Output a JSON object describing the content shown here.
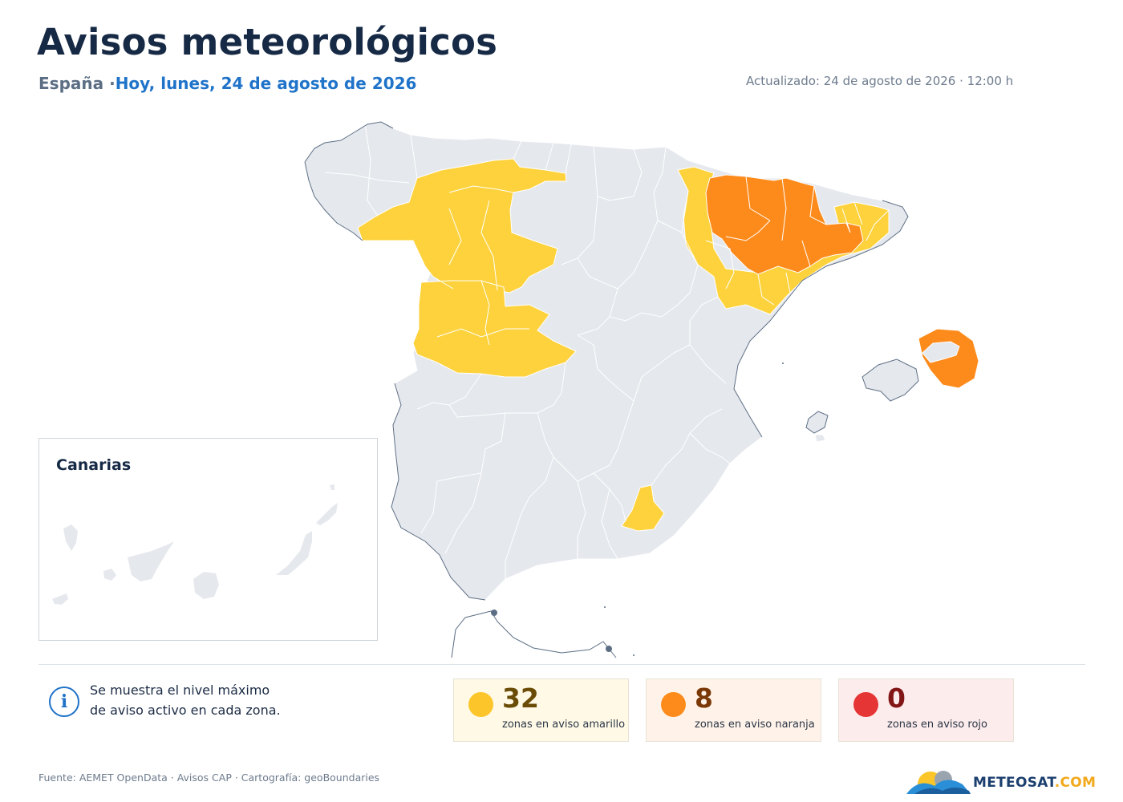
{
  "header": {
    "title": "Avisos meteorológicos",
    "country": "España",
    "separator": " ·",
    "date": "Hoy, lunes, 24 de agosto de 2026",
    "updated": "Actualizado: 24 de agosto de 2026 · 12:00 h"
  },
  "colors": {
    "no_warning": "#e5e8ed",
    "yellow": "#fdd23c",
    "orange": "#fd8b1c",
    "red": "#e53535",
    "border": "#ffffff",
    "region_outline": "#5c6e84"
  },
  "inset": {
    "title": "Canarias"
  },
  "info": {
    "icon": "info-icon",
    "line1": "Se muestra el nivel máximo",
    "line2": "de aviso activo en cada zona."
  },
  "legend": [
    {
      "level": "yellow",
      "count": "32",
      "label": "zonas en aviso amarillo",
      "dot": "#fcc62a",
      "num_color": "#6b4c06",
      "bg": "#fff9e6"
    },
    {
      "level": "orange",
      "count": "8",
      "label": "zonas en aviso naranja",
      "dot": "#fd8b1c",
      "num_color": "#7a3806",
      "bg": "#fff3e9"
    },
    {
      "level": "red",
      "count": "0",
      "label": "zonas en aviso rojo",
      "dot": "#e53535",
      "num_color": "#821515",
      "bg": "#fdecec"
    }
  ],
  "footer": {
    "source": "Fuente: AEMET OpenData · Avisos CAP · Cartografía: geoBoundaries",
    "brand_a": "METEOSAT",
    "brand_b": ".COM"
  }
}
